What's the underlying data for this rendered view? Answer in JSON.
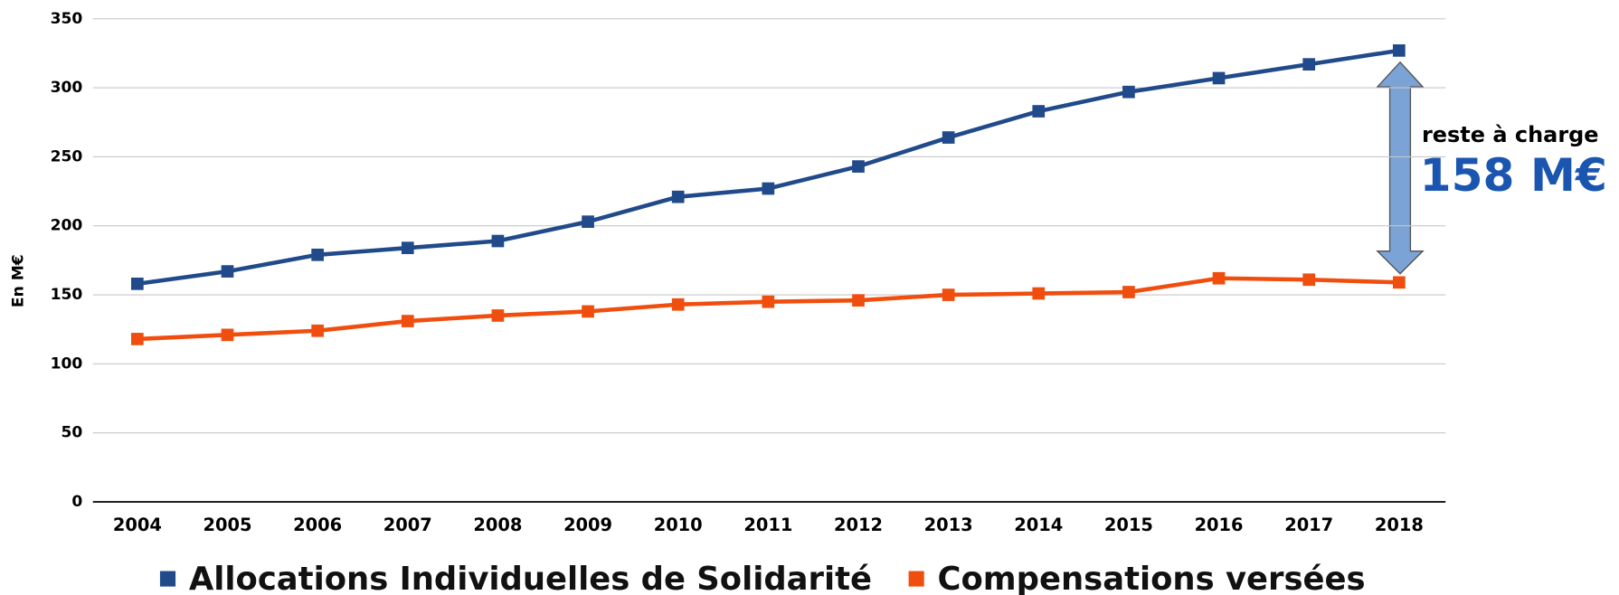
{
  "chart_data": {
    "type": "line",
    "y_label": "En M€",
    "categories": [
      "2004",
      "2005",
      "2006",
      "2007",
      "2008",
      "2009",
      "2010",
      "2011",
      "2012",
      "2013",
      "2014",
      "2015",
      "2016",
      "2017",
      "2018"
    ],
    "series": [
      {
        "name": "Allocations Individuelles de Solidarité",
        "color": "#214a8a",
        "values": [
          158,
          167,
          179,
          184,
          189,
          203,
          221,
          227,
          243,
          264,
          283,
          297,
          307,
          317,
          327
        ]
      },
      {
        "name": "Compensations versées",
        "color": "#f04e0f",
        "values": [
          118,
          121,
          124,
          131,
          135,
          138,
          143,
          145,
          146,
          150,
          151,
          152,
          162,
          161,
          159
        ]
      }
    ],
    "ylim": [
      0,
      350
    ],
    "yticks": [
      0,
      50,
      100,
      150,
      200,
      250,
      300,
      350
    ],
    "grid": true,
    "legend": "bottom",
    "annotations": [
      "reste à charge",
      "158 M€"
    ]
  }
}
